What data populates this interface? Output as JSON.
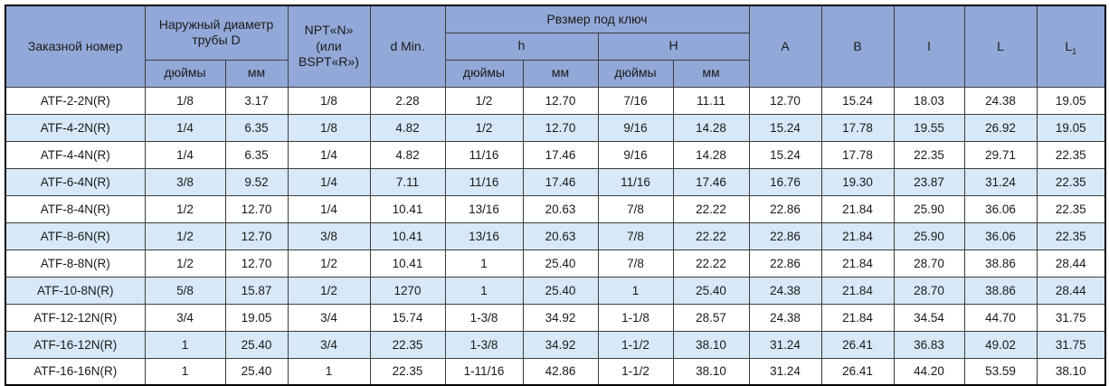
{
  "colors": {
    "header_bg": "#92a8d8",
    "row_alt_bg": "#d7e8f8",
    "row_bg": "#ffffff",
    "inner_border": "#3d3d3d",
    "outer_border": "#000000"
  },
  "table": {
    "header": {
      "order_number": "Заказной номер",
      "outer_diameter": "Наружный диаметр трубы D",
      "npt": "NPT«N» (или BSPT«R»)",
      "d_min": "d Min.",
      "wrench_size": "Рвзмер под ключ",
      "h_label": "h",
      "H_label": "H",
      "inches": "дюймы",
      "mm": "мм",
      "col_A": "A",
      "col_B": "B",
      "col_l": "l",
      "col_L": "L",
      "col_L1_main": "L",
      "col_L1_sub": "1"
    },
    "rows": [
      [
        "ATF-2-2N(R)",
        "1/8",
        "3.17",
        "1/8",
        "2.28",
        "1/2",
        "12.70",
        "7/16",
        "11.11",
        "12.70",
        "15.24",
        "18.03",
        "24.38",
        "19.05"
      ],
      [
        "ATF-4-2N(R)",
        "1/4",
        "6.35",
        "1/8",
        "4.82",
        "1/2",
        "12.70",
        "9/16",
        "14.28",
        "15.24",
        "17.78",
        "19.55",
        "26.92",
        "19.05"
      ],
      [
        "ATF-4-4N(R)",
        "1/4",
        "6.35",
        "1/4",
        "4.82",
        "11/16",
        "17.46",
        "9/16",
        "14.28",
        "15.24",
        "17.78",
        "22.35",
        "29.71",
        "22.35"
      ],
      [
        "ATF-6-4N(R)",
        "3/8",
        "9.52",
        "1/4",
        "7.11",
        "11/16",
        "17.46",
        "11/16",
        "17.46",
        "16.76",
        "19.30",
        "23.87",
        "31.24",
        "22.35"
      ],
      [
        "ATF-8-4N(R)",
        "1/2",
        "12.70",
        "1/4",
        "10.41",
        "13/16",
        "20.63",
        "7/8",
        "22.22",
        "22.86",
        "21.84",
        "25.90",
        "36.06",
        "22.35"
      ],
      [
        "ATF-8-6N(R)",
        "1/2",
        "12.70",
        "3/8",
        "10.41",
        "13/16",
        "20.63",
        "7/8",
        "22.22",
        "22.86",
        "21.84",
        "25.90",
        "36.06",
        "22.35"
      ],
      [
        "ATF-8-8N(R)",
        "1/2",
        "12.70",
        "1/2",
        "10.41",
        "1",
        "25.40",
        "7/8",
        "22.22",
        "22.86",
        "21.84",
        "28.70",
        "38.86",
        "28.44"
      ],
      [
        "ATF-10-8N(R)",
        "5/8",
        "15.87",
        "1/2",
        "1270",
        "1",
        "25.40",
        "1",
        "25.40",
        "24.38",
        "21.84",
        "28.70",
        "38.86",
        "28.44"
      ],
      [
        "ATF-12-12N(R)",
        "3/4",
        "19.05",
        "3/4",
        "15.74",
        "1-3/8",
        "34.92",
        "1-1/8",
        "28.57",
        "24.38",
        "21.84",
        "34.54",
        "44.70",
        "31.75"
      ],
      [
        "ATF-16-12N(R)",
        "1",
        "25.40",
        "3/4",
        "22.35",
        "1-3/8",
        "34.92",
        "1-1/2",
        "38.10",
        "31.24",
        "26.41",
        "36.83",
        "49.02",
        "31.75"
      ],
      [
        "ATF-16-16N(R)",
        "1",
        "25.40",
        "1",
        "22.35",
        "1-11/16",
        "42.86",
        "1-1/2",
        "38.10",
        "31.24",
        "26.41",
        "44.20",
        "53.59",
        "38.10"
      ]
    ]
  }
}
